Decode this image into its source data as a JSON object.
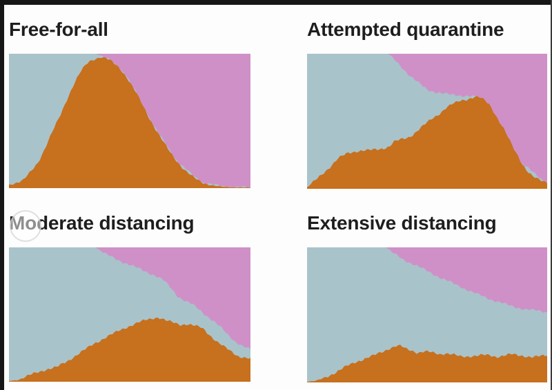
{
  "figure": {
    "background": "#fdfdfd",
    "frame_border_color": "#161616",
    "gridline_color": "#ececec",
    "title_color": "#1e1e1e",
    "watermark": {
      "shape": "circle",
      "description": "faint translucent circle over the M of Moderate distancing"
    }
  },
  "chart_data": [
    {
      "type": "area",
      "variant": "stacked_percent",
      "title": "Free-for-all",
      "xlabel": "",
      "ylabel": "",
      "x_range": [
        0,
        1
      ],
      "y_range": [
        0,
        1
      ],
      "legend": "none",
      "axes": "none",
      "grid": "faint page gridlines only",
      "stack_order_bottom_to_top": [
        "orange",
        "blue",
        "pink"
      ],
      "colors": {
        "orange": "#c7701e",
        "blue": "#a9c3ca",
        "pink": "#cf90c7"
      },
      "orange_top_boundary": [
        [
          0,
          0.025
        ],
        [
          0.03,
          0.04
        ],
        [
          0.06,
          0.06
        ],
        [
          0.09,
          0.12
        ],
        [
          0.12,
          0.19
        ],
        [
          0.15,
          0.3
        ],
        [
          0.18,
          0.42
        ],
        [
          0.21,
          0.53
        ],
        [
          0.24,
          0.66
        ],
        [
          0.27,
          0.78
        ],
        [
          0.3,
          0.875
        ],
        [
          0.33,
          0.94
        ],
        [
          0.36,
          0.965
        ],
        [
          0.38,
          0.975
        ],
        [
          0.4,
          0.97
        ],
        [
          0.43,
          0.935
        ],
        [
          0.46,
          0.89
        ],
        [
          0.49,
          0.82
        ],
        [
          0.52,
          0.73
        ],
        [
          0.55,
          0.63
        ],
        [
          0.58,
          0.525
        ],
        [
          0.61,
          0.43
        ],
        [
          0.64,
          0.34
        ],
        [
          0.67,
          0.26
        ],
        [
          0.7,
          0.19
        ],
        [
          0.73,
          0.13
        ],
        [
          0.76,
          0.085
        ],
        [
          0.79,
          0.05
        ],
        [
          0.82,
          0.03
        ],
        [
          0.85,
          0.018
        ],
        [
          0.88,
          0.01
        ],
        [
          0.92,
          0.006
        ],
        [
          1,
          0.004
        ]
      ],
      "blue_top_boundary": [
        [
          0,
          1
        ],
        [
          0.36,
          1
        ],
        [
          0.4,
          0.97
        ],
        [
          0.44,
          0.92
        ],
        [
          0.48,
          0.85
        ],
        [
          0.52,
          0.73
        ],
        [
          0.6,
          0.46
        ],
        [
          0.7,
          0.19
        ],
        [
          0.8,
          0.04
        ],
        [
          0.9,
          0.008
        ],
        [
          1,
          0.004
        ]
      ]
    },
    {
      "type": "area",
      "variant": "stacked_percent",
      "title": "Attempted quarantine",
      "xlabel": "",
      "ylabel": "",
      "x_range": [
        0,
        1
      ],
      "y_range": [
        0,
        1
      ],
      "legend": "none",
      "axes": "none",
      "grid": "faint page gridlines only",
      "stack_order_bottom_to_top": [
        "orange",
        "blue",
        "pink"
      ],
      "colors": {
        "orange": "#c7701e",
        "blue": "#a9c3ca",
        "pink": "#cf90c7"
      },
      "orange_top_boundary": [
        [
          0,
          0.01
        ],
        [
          0.03,
          0.055
        ],
        [
          0.07,
          0.12
        ],
        [
          0.1,
          0.17
        ],
        [
          0.13,
          0.225
        ],
        [
          0.17,
          0.265
        ],
        [
          0.21,
          0.28
        ],
        [
          0.26,
          0.285
        ],
        [
          0.3,
          0.295
        ],
        [
          0.33,
          0.305
        ],
        [
          0.345,
          0.315
        ],
        [
          0.36,
          0.345
        ],
        [
          0.39,
          0.365
        ],
        [
          0.42,
          0.38
        ],
        [
          0.44,
          0.4
        ],
        [
          0.46,
          0.43
        ],
        [
          0.49,
          0.475
        ],
        [
          0.52,
          0.52
        ],
        [
          0.55,
          0.555
        ],
        [
          0.58,
          0.6
        ],
        [
          0.61,
          0.63
        ],
        [
          0.64,
          0.655
        ],
        [
          0.67,
          0.665
        ],
        [
          0.7,
          0.68
        ],
        [
          0.72,
          0.675
        ],
        [
          0.74,
          0.655
        ],
        [
          0.76,
          0.625
        ],
        [
          0.78,
          0.565
        ],
        [
          0.8,
          0.5
        ],
        [
          0.82,
          0.44
        ],
        [
          0.84,
          0.37
        ],
        [
          0.86,
          0.3
        ],
        [
          0.88,
          0.24
        ],
        [
          0.9,
          0.175
        ],
        [
          0.92,
          0.125
        ],
        [
          0.94,
          0.09
        ],
        [
          0.96,
          0.07
        ],
        [
          0.98,
          0.058
        ],
        [
          1,
          0.05
        ]
      ],
      "blue_top_boundary": [
        [
          0,
          1
        ],
        [
          0.34,
          1
        ],
        [
          0.37,
          0.945
        ],
        [
          0.4,
          0.89
        ],
        [
          0.43,
          0.835
        ],
        [
          0.46,
          0.79
        ],
        [
          0.5,
          0.735
        ],
        [
          0.54,
          0.715
        ],
        [
          0.58,
          0.7
        ],
        [
          0.62,
          0.695
        ],
        [
          0.66,
          0.688
        ],
        [
          0.7,
          0.68
        ],
        [
          0.75,
          0.55
        ],
        [
          0.85,
          0.25
        ],
        [
          1,
          0.04
        ]
      ]
    },
    {
      "type": "area",
      "variant": "stacked_percent",
      "title": "Moderate distancing",
      "xlabel": "",
      "ylabel": "",
      "x_range": [
        0,
        1
      ],
      "y_range": [
        0,
        1
      ],
      "legend": "none",
      "axes": "none",
      "grid": "faint page gridlines only",
      "stack_order_bottom_to_top": [
        "orange",
        "blue",
        "pink"
      ],
      "colors": {
        "orange": "#c7701e",
        "blue": "#a9c3ca",
        "pink": "#cf90c7"
      },
      "orange_top_boundary": [
        [
          0,
          0.005
        ],
        [
          0.04,
          0.015
        ],
        [
          0.08,
          0.045
        ],
        [
          0.12,
          0.07
        ],
        [
          0.16,
          0.095
        ],
        [
          0.2,
          0.11
        ],
        [
          0.24,
          0.15
        ],
        [
          0.28,
          0.2
        ],
        [
          0.32,
          0.245
        ],
        [
          0.36,
          0.29
        ],
        [
          0.4,
          0.33
        ],
        [
          0.44,
          0.365
        ],
        [
          0.48,
          0.4
        ],
        [
          0.52,
          0.43
        ],
        [
          0.56,
          0.455
        ],
        [
          0.6,
          0.475
        ],
        [
          0.62,
          0.48
        ],
        [
          0.65,
          0.455
        ],
        [
          0.68,
          0.44
        ],
        [
          0.71,
          0.425
        ],
        [
          0.74,
          0.43
        ],
        [
          0.77,
          0.415
        ],
        [
          0.8,
          0.4
        ],
        [
          0.83,
          0.35
        ],
        [
          0.86,
          0.3
        ],
        [
          0.89,
          0.26
        ],
        [
          0.92,
          0.225
        ],
        [
          0.95,
          0.19
        ],
        [
          1,
          0.17
        ]
      ],
      "blue_top_boundary": [
        [
          0,
          1
        ],
        [
          0.36,
          1
        ],
        [
          0.4,
          0.95
        ],
        [
          0.44,
          0.915
        ],
        [
          0.48,
          0.885
        ],
        [
          0.52,
          0.855
        ],
        [
          0.56,
          0.825
        ],
        [
          0.6,
          0.795
        ],
        [
          0.64,
          0.755
        ],
        [
          0.67,
          0.7
        ],
        [
          0.7,
          0.635
        ],
        [
          0.73,
          0.6
        ],
        [
          0.76,
          0.575
        ],
        [
          0.79,
          0.535
        ],
        [
          0.82,
          0.49
        ],
        [
          0.85,
          0.445
        ],
        [
          0.88,
          0.4
        ],
        [
          0.91,
          0.345
        ],
        [
          0.94,
          0.295
        ],
        [
          0.97,
          0.26
        ],
        [
          1,
          0.24
        ]
      ]
    },
    {
      "type": "area",
      "variant": "stacked_percent",
      "title": "Extensive distancing",
      "xlabel": "",
      "ylabel": "",
      "x_range": [
        0,
        1
      ],
      "y_range": [
        0,
        1
      ],
      "legend": "none",
      "axes": "none",
      "grid": "faint page gridlines only",
      "stack_order_bottom_to_top": [
        "orange",
        "blue",
        "pink"
      ],
      "colors": {
        "orange": "#c7701e",
        "blue": "#a9c3ca",
        "pink": "#cf90c7"
      },
      "orange_top_boundary": [
        [
          0,
          0.005
        ],
        [
          0.04,
          0.012
        ],
        [
          0.08,
          0.04
        ],
        [
          0.12,
          0.075
        ],
        [
          0.16,
          0.115
        ],
        [
          0.2,
          0.15
        ],
        [
          0.24,
          0.175
        ],
        [
          0.28,
          0.2
        ],
        [
          0.31,
          0.225
        ],
        [
          0.34,
          0.25
        ],
        [
          0.37,
          0.268
        ],
        [
          0.39,
          0.27
        ],
        [
          0.41,
          0.25
        ],
        [
          0.44,
          0.235
        ],
        [
          0.46,
          0.22
        ],
        [
          0.49,
          0.228
        ],
        [
          0.52,
          0.222
        ],
        [
          0.55,
          0.21
        ],
        [
          0.58,
          0.216
        ],
        [
          0.61,
          0.205
        ],
        [
          0.64,
          0.19
        ],
        [
          0.67,
          0.193
        ],
        [
          0.7,
          0.198
        ],
        [
          0.73,
          0.202
        ],
        [
          0.76,
          0.2
        ],
        [
          0.79,
          0.19
        ],
        [
          0.82,
          0.2
        ],
        [
          0.85,
          0.208
        ],
        [
          0.88,
          0.2
        ],
        [
          0.91,
          0.195
        ],
        [
          0.94,
          0.188
        ],
        [
          0.97,
          0.193
        ],
        [
          1,
          0.2
        ]
      ],
      "blue_top_boundary": [
        [
          0,
          1
        ],
        [
          0.33,
          1
        ],
        [
          0.36,
          0.955
        ],
        [
          0.4,
          0.91
        ],
        [
          0.45,
          0.87
        ],
        [
          0.5,
          0.825
        ],
        [
          0.55,
          0.78
        ],
        [
          0.6,
          0.74
        ],
        [
          0.65,
          0.7
        ],
        [
          0.7,
          0.66
        ],
        [
          0.75,
          0.625
        ],
        [
          0.8,
          0.595
        ],
        [
          0.85,
          0.565
        ],
        [
          0.9,
          0.545
        ],
        [
          0.95,
          0.533
        ],
        [
          1,
          0.52
        ]
      ]
    }
  ]
}
